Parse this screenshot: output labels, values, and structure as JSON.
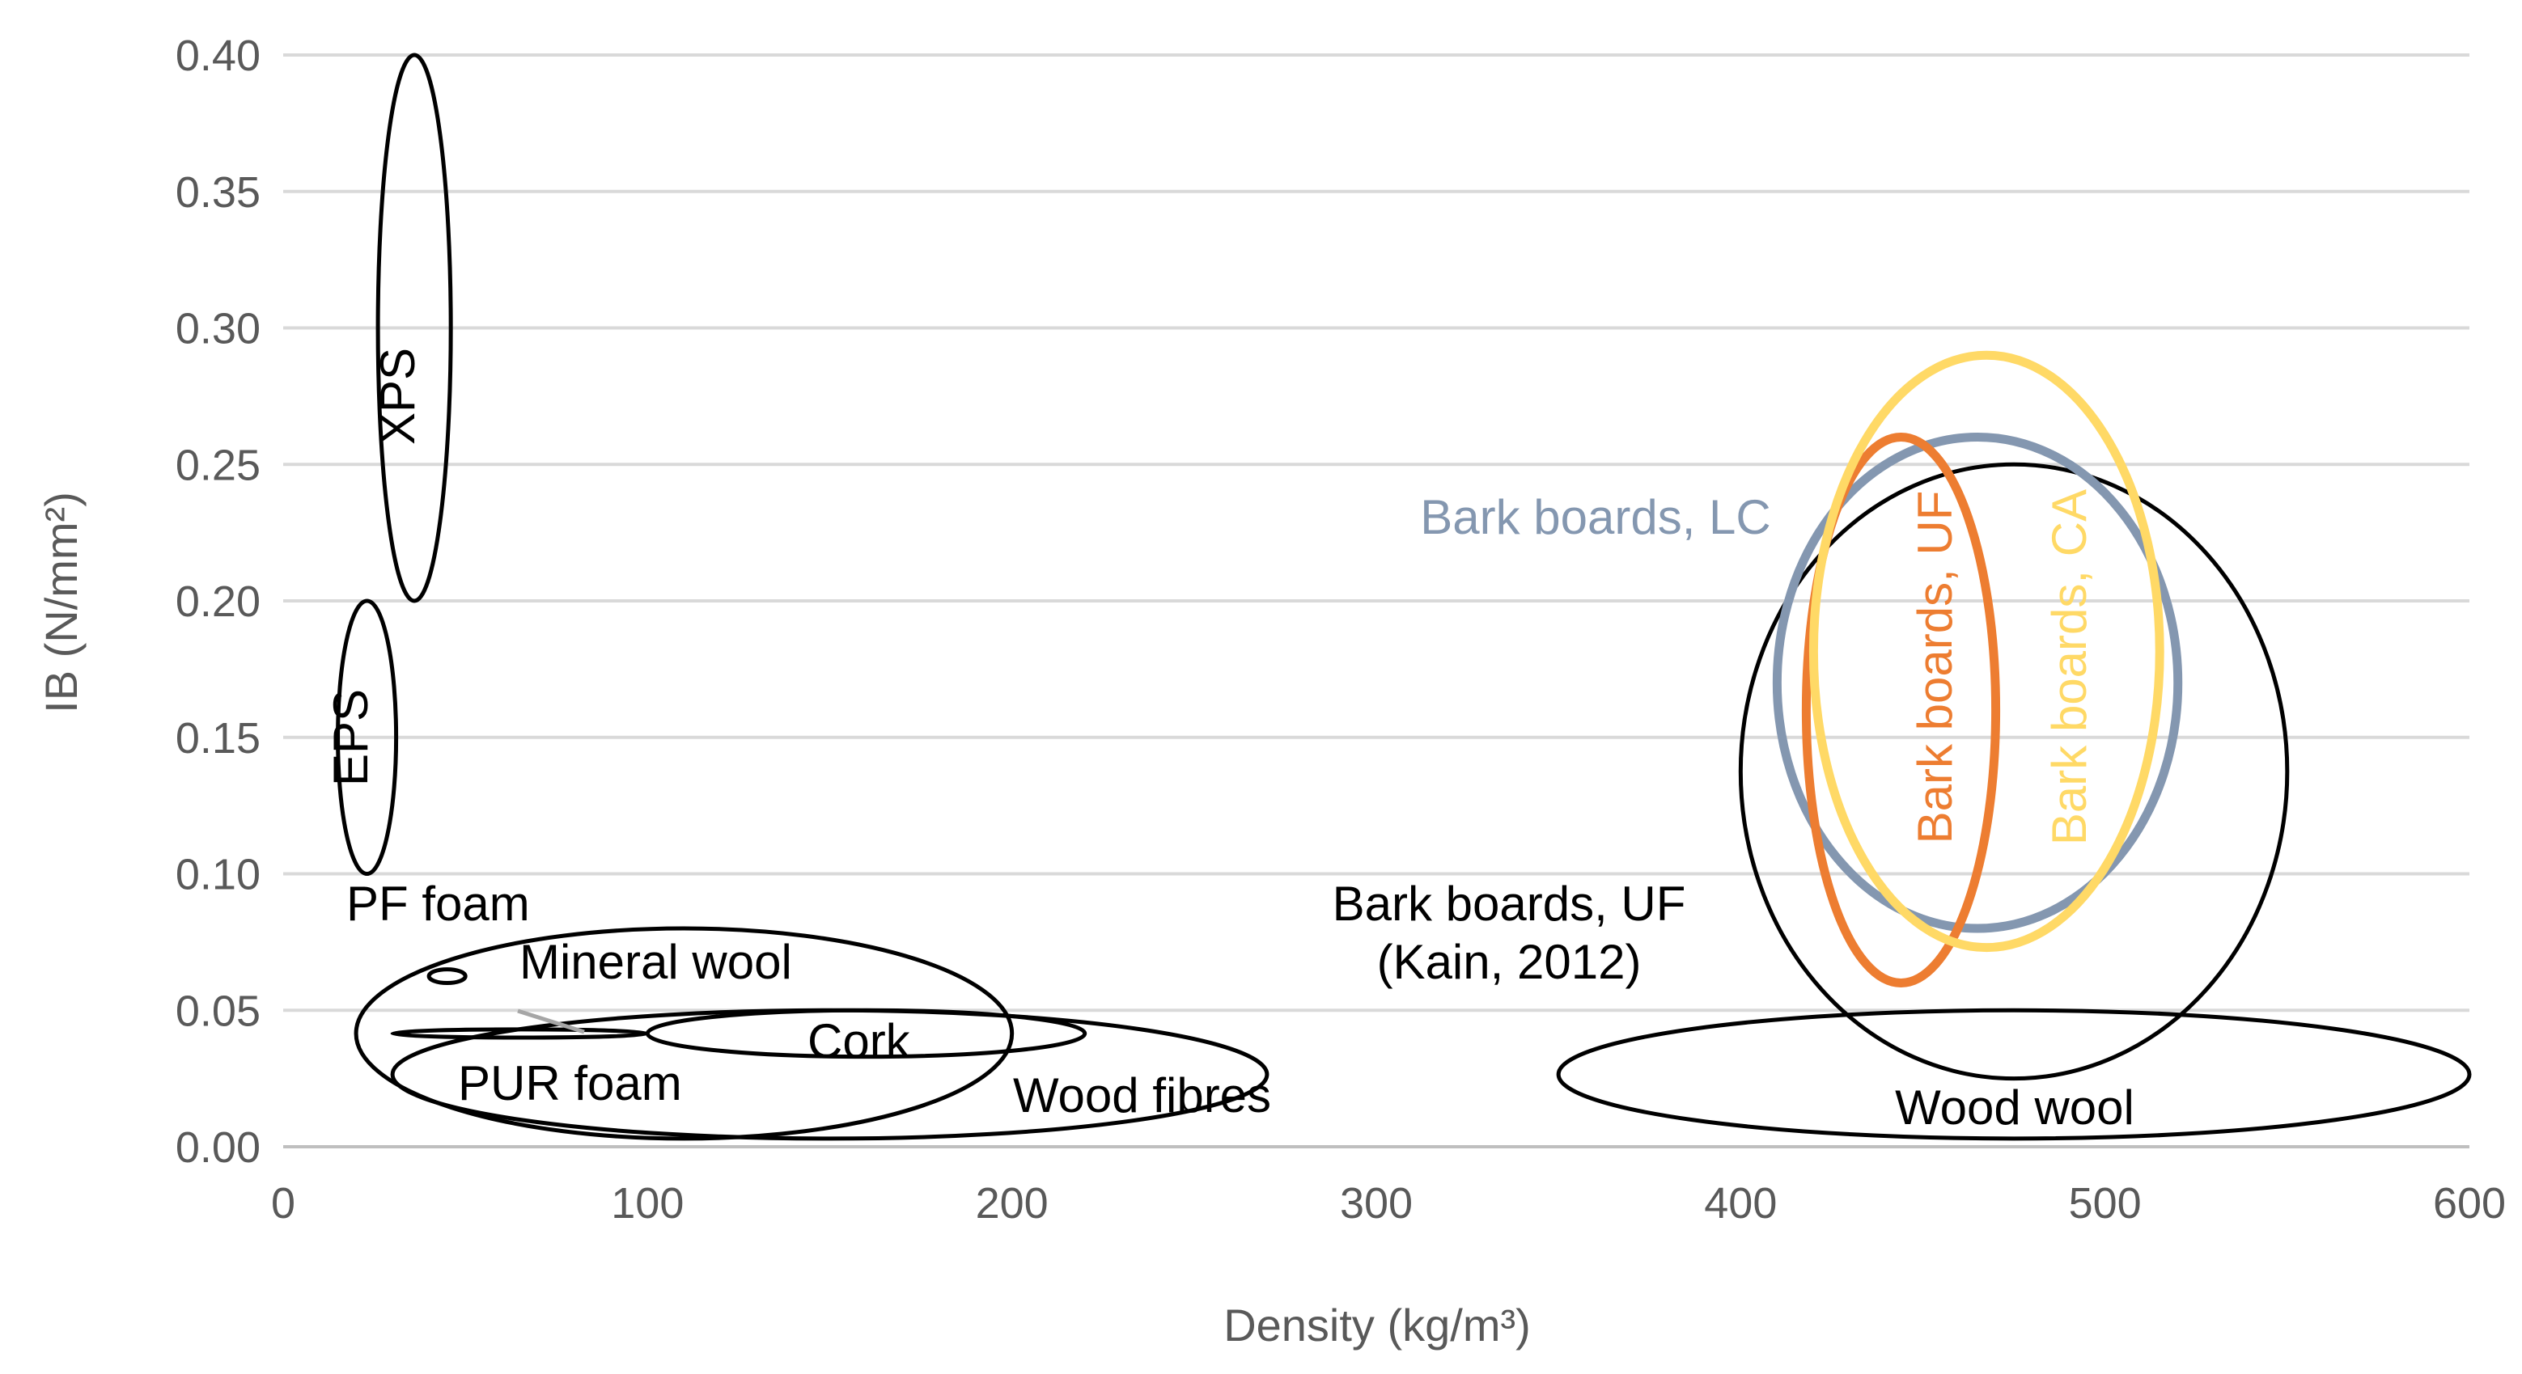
{
  "chart_data": {
    "type": "scatter",
    "title": "",
    "xlabel": "Density (kg/m³)",
    "ylabel": "IB (N/mm²)",
    "xlim": [
      0,
      600
    ],
    "ylim": [
      0,
      0.4
    ],
    "grid": true,
    "x_ticks": [
      "0",
      "100",
      "200",
      "300",
      "400",
      "500",
      "600"
    ],
    "y_ticks": [
      "0.00",
      "0.05",
      "0.10",
      "0.15",
      "0.20",
      "0.25",
      "0.30",
      "0.35",
      "0.40"
    ],
    "series": [
      {
        "name": "XPS",
        "x_range": [
          26,
          46
        ],
        "y_range": [
          0.2,
          0.4
        ],
        "color": "#000000",
        "label": "XPS"
      },
      {
        "name": "EPS",
        "x_range": [
          15,
          31
        ],
        "y_range": [
          0.1,
          0.2
        ],
        "color": "#000000",
        "label": "EPS"
      },
      {
        "name": "PF foam",
        "x_range": [
          40,
          50
        ],
        "y_range": [
          0.06,
          0.065
        ],
        "color": "#000000",
        "label": "PF foam"
      },
      {
        "name": "Mineral wool",
        "x_range": [
          20,
          200
        ],
        "y_range": [
          0.003,
          0.08
        ],
        "color": "#000000",
        "label": "Mineral wool"
      },
      {
        "name": "Cork",
        "x_range": [
          100,
          220
        ],
        "y_range": [
          0.033,
          0.05
        ],
        "color": "#000000",
        "label": "Cork"
      },
      {
        "name": "PUR foam",
        "x_range": [
          30,
          100
        ],
        "y_range": [
          0.04,
          0.043
        ],
        "color": "#000000",
        "label": "PUR foam"
      },
      {
        "name": "Wood fibres",
        "x_range": [
          30,
          270
        ],
        "y_range": [
          0.003,
          0.05
        ],
        "color": "#000000",
        "label": "Wood fibres"
      },
      {
        "name": "Bark boards, UF (Kain, 2012)",
        "x_range": [
          400,
          550
        ],
        "y_range": [
          0.025,
          0.25
        ],
        "color": "#000000",
        "label": "Bark boards, UF\n(Kain, 2012)"
      },
      {
        "name": "Wood wool",
        "x_range": [
          350,
          600
        ],
        "y_range": [
          0.003,
          0.05
        ],
        "color": "#000000",
        "label": "Wood wool"
      },
      {
        "name": "Bark boards, LC",
        "x_range": [
          410,
          520
        ],
        "y_range": [
          0.08,
          0.26
        ],
        "color": "#8497B0",
        "label": "Bark boards, LC"
      },
      {
        "name": "Bark boards, UF",
        "x_range": [
          418,
          470
        ],
        "y_range": [
          0.06,
          0.26
        ],
        "color": "#ED7D31",
        "label": "Bark boards, UF"
      },
      {
        "name": "Bark boards, CA",
        "x_range": [
          420,
          515
        ],
        "y_range": [
          0.073,
          0.29
        ],
        "color": "#FFD966",
        "label": "Bark boards, CA"
      }
    ]
  }
}
